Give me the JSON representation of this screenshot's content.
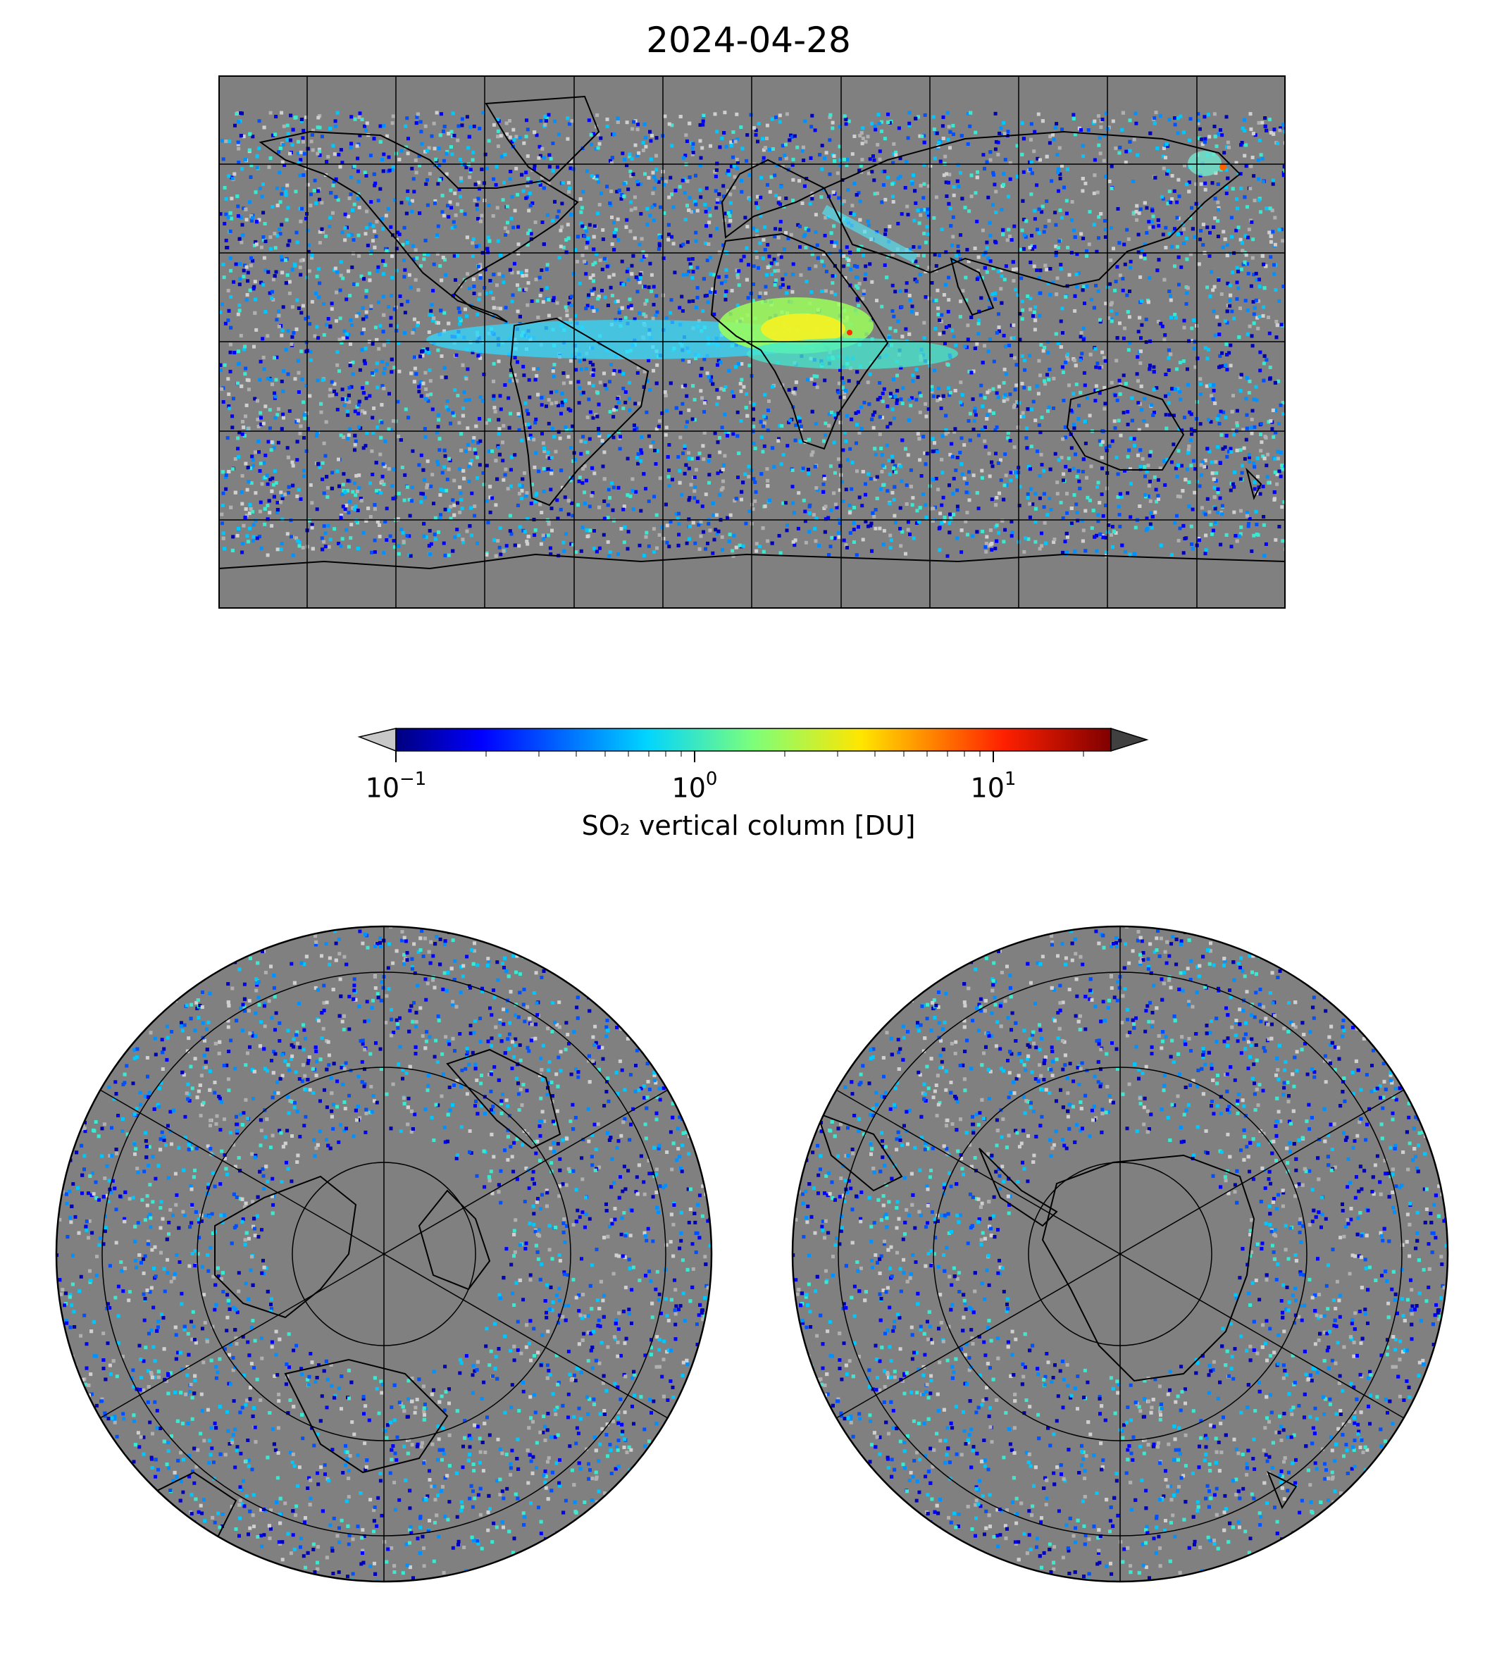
{
  "title": "2024-04-28",
  "colorbar": {
    "label": "SO₂ vertical column [DU]",
    "scale": "log",
    "range": [
      0.1,
      25
    ],
    "ticks": [
      {
        "base": "10",
        "exp": "−1",
        "value": 0.1
      },
      {
        "base": "10",
        "exp": "0",
        "value": 1
      },
      {
        "base": "10",
        "exp": "1",
        "value": 10
      }
    ],
    "colormap": "jet",
    "under_color": "#c8c8c8",
    "over_color": "#404040"
  },
  "colors": {
    "background_no_data": "#808080",
    "coastline": "#000000",
    "gridline": "#000000"
  },
  "maps": [
    {
      "name": "global",
      "projection": "equirectangular",
      "gridlines": {
        "lon_step_deg": 30,
        "lat_step_deg": 30
      }
    },
    {
      "name": "north-polar",
      "projection": "north-polar-stereographic",
      "gridlines": {
        "lon_step_deg": 60,
        "lat_step_deg": 15
      }
    },
    {
      "name": "south-polar",
      "projection": "south-polar-stereographic",
      "gridlines": {
        "lon_step_deg": 60,
        "lat_step_deg": 15
      }
    }
  ],
  "plumes": [
    {
      "region": "Central Africa",
      "level": "high"
    },
    {
      "region": "Tropical Atlantic",
      "level": "moderate"
    },
    {
      "region": "Kamchatka",
      "level": "moderate"
    }
  ]
}
